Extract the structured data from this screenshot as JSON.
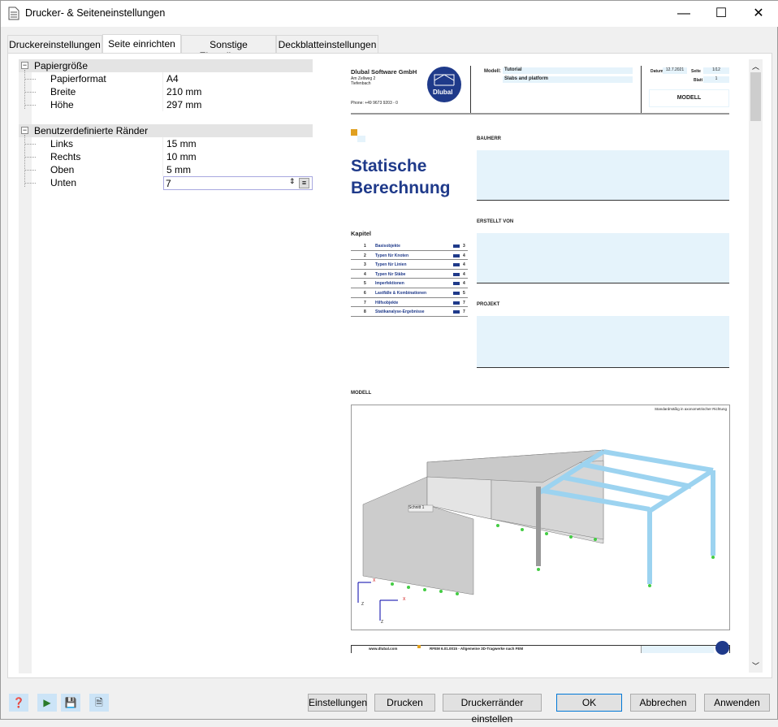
{
  "window": {
    "title": "Drucker- & Seiteneinstellungen",
    "minimize": "—",
    "maximize": "☐",
    "close": "✕"
  },
  "tabs": [
    {
      "label": "Druckereinstellungen"
    },
    {
      "label": "Seite einrichten",
      "active": true
    },
    {
      "label": "Sonstige Einstellungen"
    },
    {
      "label": "Deckblatteinstellungen"
    }
  ],
  "tree": {
    "groups": [
      {
        "label": "Papiergröße",
        "rows": [
          {
            "key": "Papierformat",
            "value": "A4"
          },
          {
            "key": "Breite",
            "value": "210 mm"
          },
          {
            "key": "Höhe",
            "value": "297 mm"
          }
        ]
      },
      {
        "label": "Benutzerdefinierte Ränder",
        "rows": [
          {
            "key": "Links",
            "value": "15 mm"
          },
          {
            "key": "Rechts",
            "value": "10 mm"
          },
          {
            "key": "Oben",
            "value": "5 mm"
          },
          {
            "key": "Unten",
            "value": "7",
            "editing": true
          }
        ]
      }
    ]
  },
  "preview": {
    "company": "Dlubal Software GmbH",
    "street": "Am Zellweg 2",
    "city": "Tiefenbach",
    "phone": "Phone: +49 9673 9203 - 0",
    "logo": "Dlubal",
    "model_label": "Modell:",
    "model_value": "Tutorial",
    "model_sub": "Slabs and platform",
    "date_label": "Datum",
    "date_value": "12.7.2021",
    "page_label": "Seite",
    "page_value": "1/12",
    "sheet_label": "Blatt",
    "sheet_value": "1",
    "section": "MODELL",
    "title_line1": "Statische",
    "title_line2": "Berechnung",
    "bauherr": "BAUHERR",
    "erstellt": "ERSTELLT VON",
    "projekt": "PROJEKT",
    "kapitel_title": "Kapitel",
    "chapters": [
      {
        "n": "1",
        "name": "Basisobjekte",
        "page": "3"
      },
      {
        "n": "2",
        "name": "Typen für Knoten",
        "page": "4"
      },
      {
        "n": "3",
        "name": "Typen für Linien",
        "page": "4"
      },
      {
        "n": "4",
        "name": "Typen für Stäbe",
        "page": "4"
      },
      {
        "n": "5",
        "name": "Imperfektionen",
        "page": "4"
      },
      {
        "n": "6",
        "name": "Lastfälle & Kombinationen",
        "page": "5"
      },
      {
        "n": "7",
        "name": "Hilfsobjekte",
        "page": "7"
      },
      {
        "n": "8",
        "name": "Statikanalyse-Ergebnisse",
        "page": "7"
      }
    ],
    "model_heading": "MODELL",
    "view_note": "Standardmäßig in axonometrischer Richtung",
    "section_label": "Schnitt 1",
    "axis_x": "X",
    "axis_z": "Z",
    "footer_url": "www.dlubal.com",
    "footer_program": "RFEM 6.01.0015 - Allgemeine 3D-Tragwerke nach FEM"
  },
  "buttons": {
    "settings": "Einstellungen",
    "print": "Drucken",
    "margins": "Druckerränder einstellen",
    "ok": "OK",
    "cancel": "Abbrechen",
    "apply": "Anwenden"
  },
  "icons": [
    "help-icon",
    "export-icon",
    "save-icon",
    "database-report-icon"
  ],
  "colors": {
    "accent": "#0078d7",
    "brand": "#1f3a8a",
    "highlight": "#e5f3fb"
  }
}
